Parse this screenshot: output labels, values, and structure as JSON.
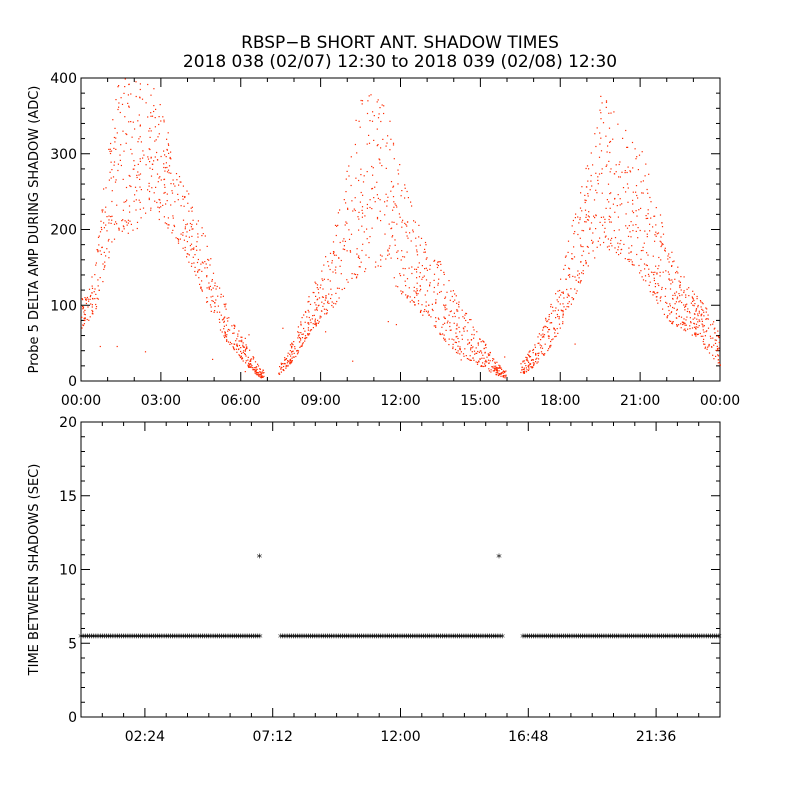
{
  "title_line1": "RBSP−B SHORT ANT. SHADOW TIMES",
  "title_line2": "2018 038 (02/07) 12:30 to 2018 039 (02/08) 12:30",
  "colors": {
    "points_top": "#ff2a00",
    "points_bottom": "#000000",
    "axes": "#000000"
  },
  "chart_data": [
    {
      "type": "scatter",
      "ylabel": "Probe 5 DELTA AMP DURING SHADOW (ADC)",
      "xlabel": "",
      "xlim_hours": [
        0,
        24
      ],
      "ylim": [
        0,
        400
      ],
      "x_tick_labels": [
        "00:00",
        "03:00",
        "06:00",
        "09:00",
        "12:00",
        "15:00",
        "18:00",
        "21:00",
        "00:00"
      ],
      "y_ticks": [
        0,
        100,
        200,
        300,
        400
      ],
      "envelope_note": "dense cloud of shadow points; values shown as envelope samples (hour, low, high)",
      "envelope": [
        [
          0.0,
          70,
          110
        ],
        [
          0.5,
          90,
          150
        ],
        [
          1.0,
          160,
          310
        ],
        [
          1.4,
          200,
          400
        ],
        [
          2.0,
          190,
          400
        ],
        [
          2.5,
          230,
          400
        ],
        [
          3.0,
          210,
          380
        ],
        [
          3.5,
          190,
          290
        ],
        [
          4.0,
          160,
          250
        ],
        [
          4.5,
          120,
          210
        ],
        [
          5.0,
          80,
          150
        ],
        [
          5.5,
          50,
          100
        ],
        [
          6.0,
          30,
          60
        ],
        [
          6.5,
          10,
          30
        ],
        [
          6.75,
          5,
          15
        ],
        [
          7.5,
          10,
          25
        ],
        [
          8.0,
          30,
          60
        ],
        [
          8.5,
          60,
          110
        ],
        [
          9.0,
          80,
          150
        ],
        [
          9.5,
          100,
          200
        ],
        [
          10.0,
          130,
          290
        ],
        [
          10.5,
          140,
          380
        ],
        [
          11.0,
          150,
          400
        ],
        [
          11.5,
          150,
          360
        ],
        [
          12.0,
          110,
          280
        ],
        [
          12.5,
          100,
          220
        ],
        [
          13.0,
          80,
          180
        ],
        [
          13.5,
          60,
          160
        ],
        [
          14.0,
          40,
          120
        ],
        [
          14.5,
          30,
          90
        ],
        [
          15.0,
          20,
          60
        ],
        [
          15.5,
          10,
          30
        ],
        [
          15.9,
          5,
          15
        ],
        [
          16.6,
          10,
          30
        ],
        [
          17.0,
          20,
          50
        ],
        [
          17.5,
          40,
          90
        ],
        [
          18.0,
          70,
          140
        ],
        [
          18.5,
          110,
          220
        ],
        [
          19.0,
          150,
          290
        ],
        [
          19.5,
          170,
          380
        ],
        [
          20.0,
          170,
          360
        ],
        [
          20.5,
          160,
          330
        ],
        [
          21.0,
          140,
          310
        ],
        [
          21.5,
          110,
          250
        ],
        [
          22.0,
          80,
          190
        ],
        [
          22.5,
          70,
          150
        ],
        [
          23.0,
          60,
          120
        ],
        [
          23.5,
          40,
          100
        ],
        [
          24.0,
          20,
          60
        ]
      ],
      "gaps_hours": [
        [
          6.85,
          7.4
        ],
        [
          15.95,
          16.5
        ]
      ]
    },
    {
      "type": "scatter",
      "ylabel": "TIME BETWEEN SHADOWS (SEC)",
      "xlabel": "",
      "xlim_hours": [
        0,
        24
      ],
      "ylim": [
        0,
        20
      ],
      "x_ticks_hours": [
        2.4,
        7.2,
        12.0,
        16.8,
        21.6
      ],
      "x_tick_labels": [
        "02:24",
        "07:12",
        "12:00",
        "16:48",
        "21:36"
      ],
      "y_ticks": [
        0,
        5,
        10,
        15,
        20
      ],
      "baseline_value": 5.4,
      "baseline_segments_hours": [
        [
          0.0,
          6.75
        ],
        [
          7.5,
          15.85
        ],
        [
          16.6,
          24.0
        ]
      ],
      "outliers": [
        {
          "x_hour": 6.7,
          "y": 10.8
        },
        {
          "x_hour": 15.7,
          "y": 10.8
        }
      ]
    }
  ]
}
